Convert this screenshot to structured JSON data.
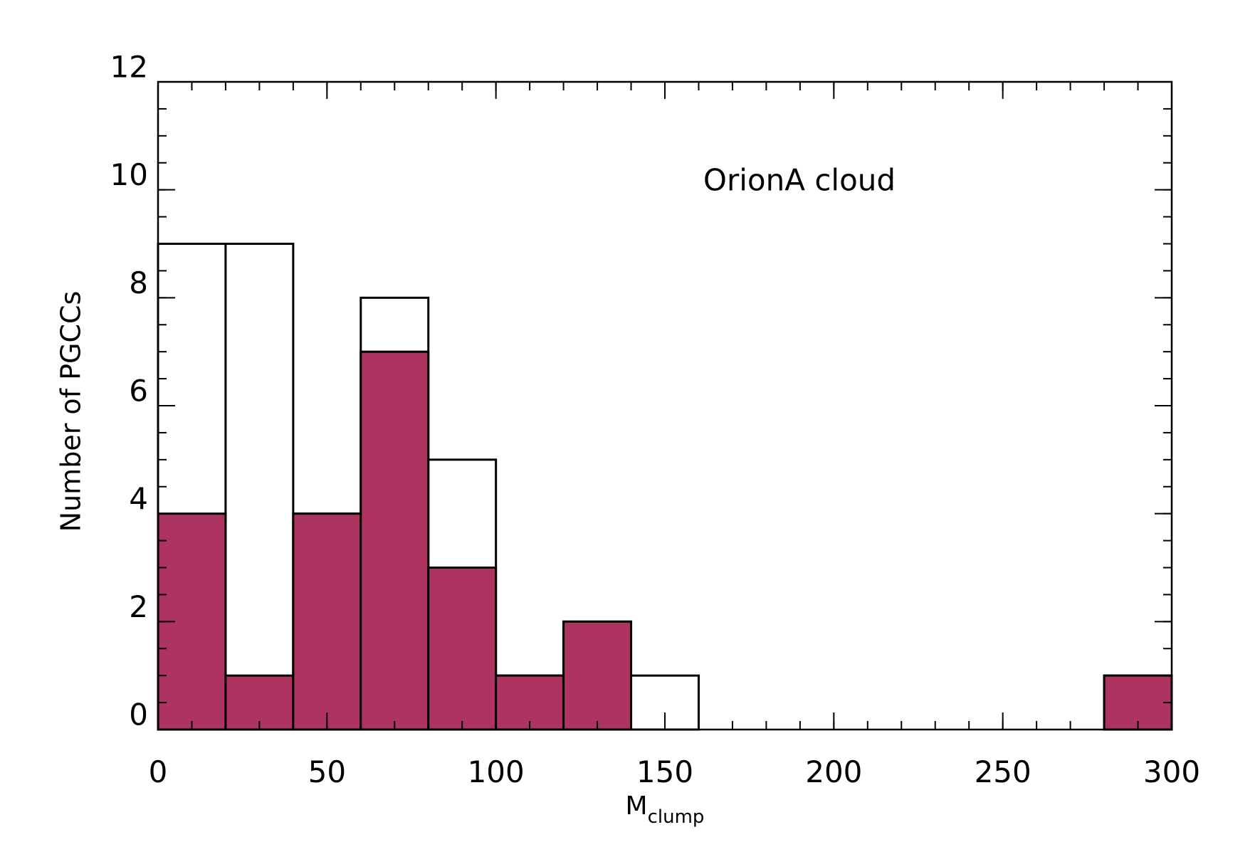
{
  "chart_data": {
    "type": "histogram",
    "annotation": "OrionA cloud",
    "xlabel": {
      "main": "M",
      "sub": "clump"
    },
    "ylabel": "Number of PGCCs",
    "bins": [
      0,
      20,
      40,
      60,
      80,
      100,
      120,
      140,
      160,
      180,
      200,
      220,
      240,
      260,
      280,
      300
    ],
    "series": [
      {
        "color": "#ffffff",
        "values": [
          9,
          9,
          4,
          8,
          5,
          1,
          2,
          1,
          0,
          0,
          0,
          0,
          0,
          0,
          1
        ]
      },
      {
        "color": "#ad3460",
        "values": [
          4,
          1,
          4,
          7,
          3,
          1,
          2,
          0,
          0,
          0,
          0,
          0,
          0,
          0,
          1
        ]
      }
    ],
    "xlim": [
      0,
      300
    ],
    "xticks": [
      0,
      50,
      100,
      150,
      200,
      250,
      300
    ],
    "xminor_step": 10,
    "ylim": [
      0,
      12
    ],
    "yticks": [
      0,
      2,
      4,
      6,
      8,
      10,
      12
    ],
    "yminor_step": 0.5
  }
}
